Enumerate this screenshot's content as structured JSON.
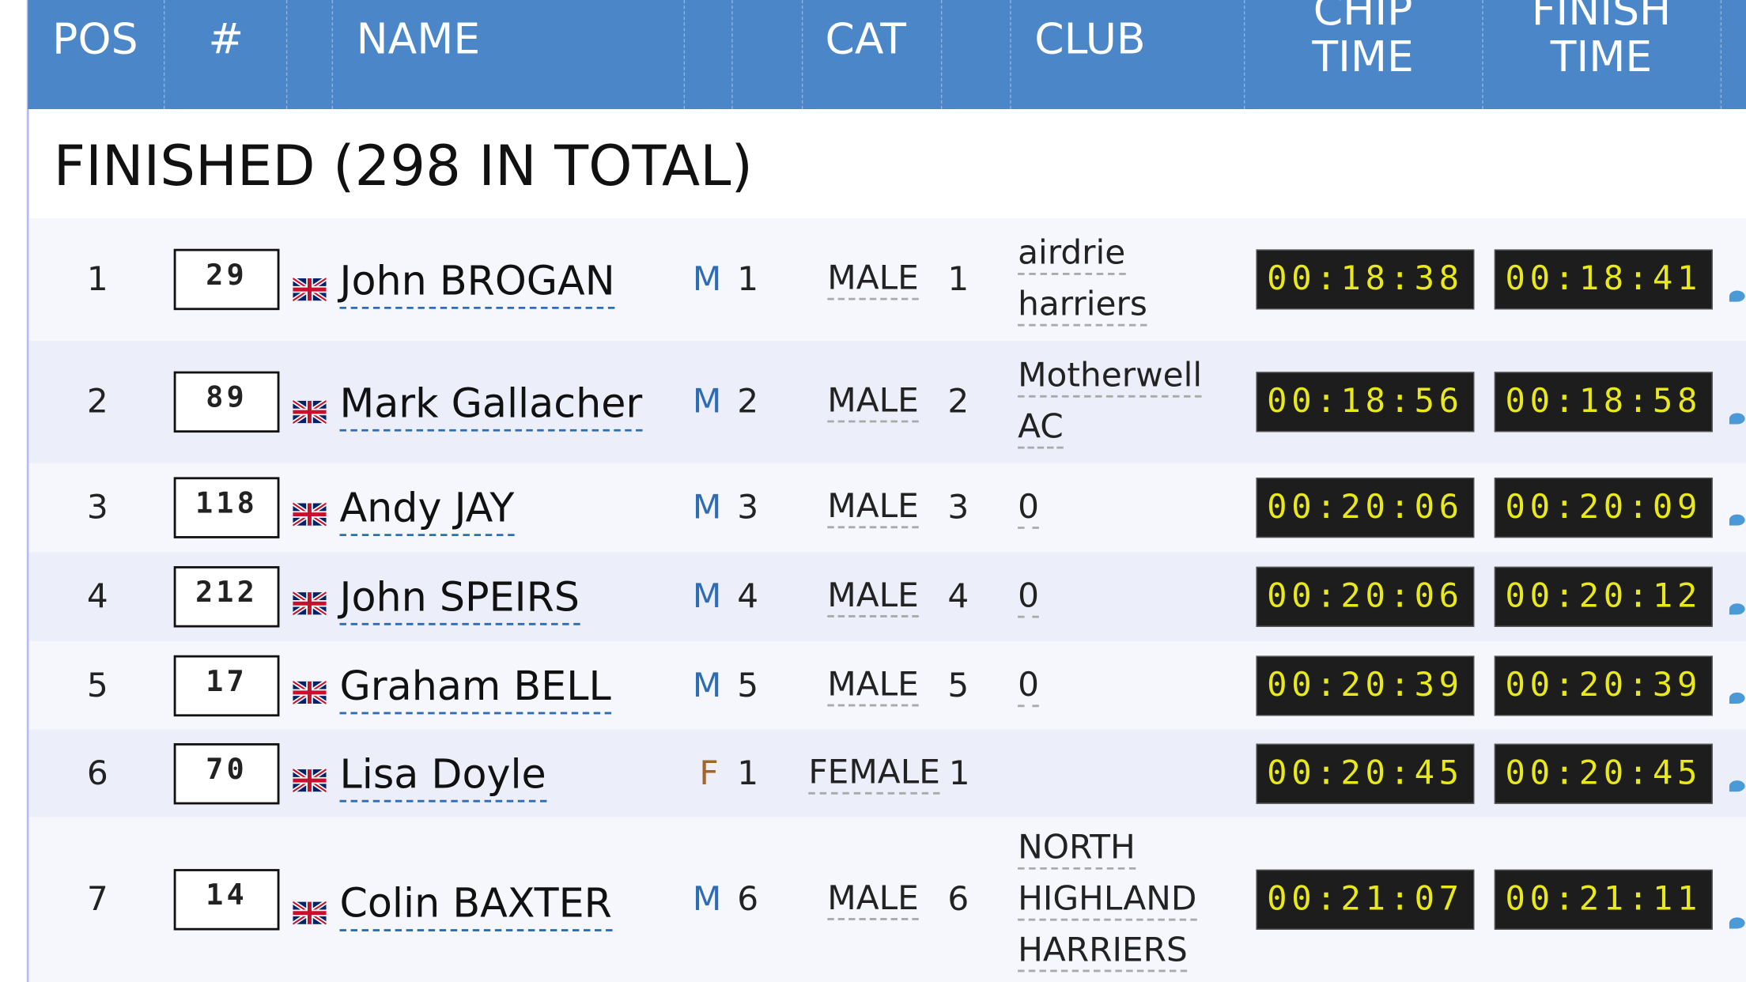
{
  "header": {
    "columns": [
      "POS",
      "#",
      "NAME",
      "CAT",
      "CLUB",
      "CHIP TIME",
      "FINISH TIME"
    ]
  },
  "section_title": "FINISHED (298 IN TOTAL)",
  "rows": [
    {
      "pos": "1",
      "bib": "29",
      "name": "John BROGAN",
      "gender": "M",
      "gender_pos": "1",
      "cat": "MALE",
      "cat_pos": "1",
      "club": "airdrie harriers",
      "chip_time": "00:18:38",
      "finish_time": "00:18:41"
    },
    {
      "pos": "2",
      "bib": "89",
      "name": "Mark Gallacher",
      "gender": "M",
      "gender_pos": "2",
      "cat": "MALE",
      "cat_pos": "2",
      "club": "Motherwell AC",
      "chip_time": "00:18:56",
      "finish_time": "00:18:58"
    },
    {
      "pos": "3",
      "bib": "118",
      "name": "Andy JAY",
      "gender": "M",
      "gender_pos": "3",
      "cat": "MALE",
      "cat_pos": "3",
      "club": "0",
      "chip_time": "00:20:06",
      "finish_time": "00:20:09"
    },
    {
      "pos": "4",
      "bib": "212",
      "name": "John SPEIRS",
      "gender": "M",
      "gender_pos": "4",
      "cat": "MALE",
      "cat_pos": "4",
      "club": "0",
      "chip_time": "00:20:06",
      "finish_time": "00:20:12"
    },
    {
      "pos": "5",
      "bib": "17",
      "name": "Graham BELL",
      "gender": "M",
      "gender_pos": "5",
      "cat": "MALE",
      "cat_pos": "5",
      "club": "0",
      "chip_time": "00:20:39",
      "finish_time": "00:20:39"
    },
    {
      "pos": "6",
      "bib": "70",
      "name": "Lisa Doyle",
      "gender": "F",
      "gender_pos": "1",
      "cat": "FEMALE",
      "cat_pos": "1",
      "club": "",
      "chip_time": "00:20:45",
      "finish_time": "00:20:45"
    },
    {
      "pos": "7",
      "bib": "14",
      "name": "Colin BAXTER",
      "gender": "M",
      "gender_pos": "6",
      "cat": "MALE",
      "cat_pos": "6",
      "club": "NORTH HIGHLAND HARRIERS",
      "chip_time": "00:21:07",
      "finish_time": "00:21:11"
    }
  ]
}
